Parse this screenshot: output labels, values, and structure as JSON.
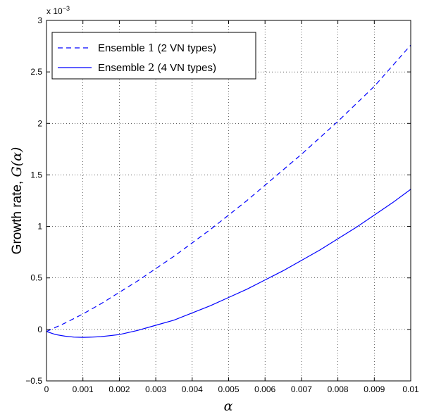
{
  "chart_data": {
    "type": "line",
    "xlabel": "α",
    "ylabel_prefix": "Growth rate, ",
    "ylabel_math": "G(α)",
    "y_exponent_label": "x 10",
    "y_exponent_power": "−3",
    "xlim": [
      0,
      0.01
    ],
    "ylim": [
      -0.5,
      3
    ],
    "x_ticks": [
      0,
      0.001,
      0.002,
      0.003,
      0.004,
      0.005,
      0.006,
      0.007,
      0.008,
      0.009,
      0.01
    ],
    "x_tick_labels": [
      "0",
      "0.001",
      "0.002",
      "0.003",
      "0.004",
      "0.005",
      "0.006",
      "0.007",
      "0.008",
      "0.009",
      "0.01"
    ],
    "y_ticks": [
      -0.5,
      0,
      0.5,
      1,
      1.5,
      2,
      2.5,
      3
    ],
    "y_tick_labels": [
      "−0.5",
      "0",
      "0.5",
      "1",
      "1.5",
      "2",
      "2.5",
      "3"
    ],
    "grid": true,
    "legend_position": "top-left",
    "series": [
      {
        "name": "Ensemble 1 (2 VN types)",
        "style": "dashed",
        "color": "#0000ff",
        "x": [
          0,
          0.0005,
          0.001,
          0.0015,
          0.002,
          0.0025,
          0.003,
          0.0035,
          0.004,
          0.0045,
          0.005,
          0.0055,
          0.006,
          0.0065,
          0.007,
          0.0075,
          0.008,
          0.0085,
          0.009,
          0.0095,
          0.01
        ],
        "y": [
          -0.02,
          0.06,
          0.15,
          0.25,
          0.36,
          0.47,
          0.59,
          0.71,
          0.84,
          0.97,
          1.11,
          1.25,
          1.4,
          1.55,
          1.7,
          1.86,
          2.02,
          2.19,
          2.36,
          2.56,
          2.76
        ]
      },
      {
        "name": "Ensemble 2 (4 VN types)",
        "style": "solid",
        "color": "#0000ff",
        "x": [
          0,
          0.00025,
          0.0005,
          0.00075,
          0.001,
          0.00125,
          0.0015,
          0.002,
          0.0025,
          0.003,
          0.0035,
          0.004,
          0.0045,
          0.005,
          0.0055,
          0.006,
          0.0065,
          0.007,
          0.0075,
          0.008,
          0.0085,
          0.009,
          0.0095,
          0.01
        ],
        "y": [
          -0.02,
          -0.05,
          -0.065,
          -0.075,
          -0.077,
          -0.075,
          -0.07,
          -0.05,
          -0.01,
          0.04,
          0.09,
          0.16,
          0.23,
          0.31,
          0.39,
          0.48,
          0.57,
          0.67,
          0.77,
          0.88,
          0.99,
          1.11,
          1.23,
          1.36
        ]
      }
    ],
    "legend": {
      "entries": [
        {
          "prefix": "Ensemble ",
          "num": "1",
          "suffix": " (2 VN types)"
        },
        {
          "prefix": "Ensemble ",
          "num": "2",
          "suffix": " (4 VN types)"
        }
      ]
    }
  }
}
